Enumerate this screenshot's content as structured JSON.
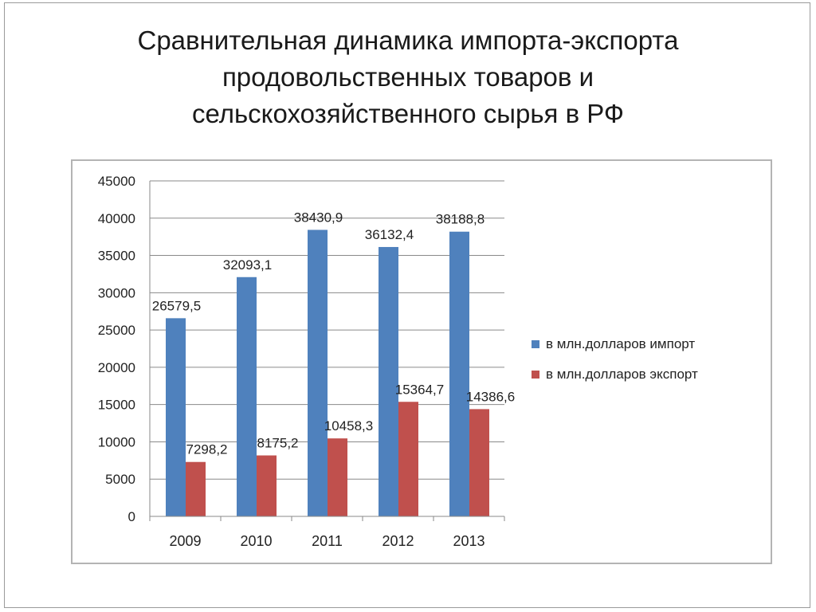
{
  "title_lines": [
    "Сравнительная динамика импорта-экспорта",
    "продовольственных товаров и",
    "сельскохозяйственного сырья в РФ"
  ],
  "colors": {
    "import": "#4f81bd",
    "export": "#c0504d",
    "grid": "#8a8a8a"
  },
  "legend": [
    {
      "label": "в млн.долларов импорт",
      "color": "#4f81bd"
    },
    {
      "label": "в млн.долларов экспорт",
      "color": "#c0504d"
    }
  ],
  "chart_data": {
    "type": "bar",
    "title": "Сравнительная динамика импорта-экспорта продовольственных товаров и сельскохозяйственного сырья в РФ",
    "categories": [
      "2009",
      "2010",
      "2011",
      "2012",
      "2013"
    ],
    "series": [
      {
        "name": "в млн.долларов импорт",
        "values": [
          26579.5,
          32093.1,
          38430.9,
          36132.4,
          38188.8
        ],
        "labels": [
          "26579,5",
          "32093,1",
          "38430,9",
          "36132,4",
          "38188,8"
        ]
      },
      {
        "name": "в млн.долларов экспорт",
        "values": [
          7298.2,
          8175.2,
          10458.3,
          15364.7,
          14386.6
        ],
        "labels": [
          "7298,2",
          "8175,2",
          "10458,3",
          "15364,7",
          "14386,6"
        ]
      }
    ],
    "ylim": [
      0,
      45000
    ],
    "yticks": [
      0,
      5000,
      10000,
      15000,
      20000,
      25000,
      30000,
      35000,
      40000,
      45000
    ],
    "grid": true,
    "legend_position": "right",
    "xlabel": "",
    "ylabel": ""
  }
}
